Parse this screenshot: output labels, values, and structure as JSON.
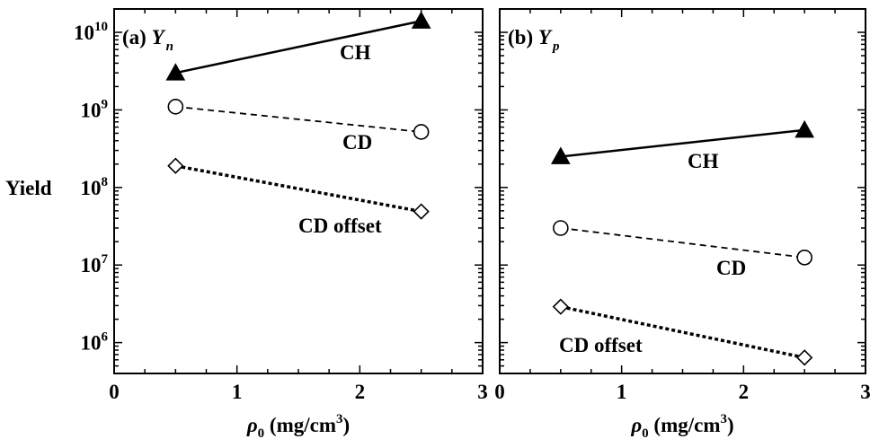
{
  "chart_data": [
    {
      "type": "scatter",
      "panel_label": "(a)",
      "panel_symbol": "Y",
      "panel_subscript": "n",
      "ylabel": "Yield",
      "xlabel_symbol": "ρ",
      "xlabel_subscript": "0",
      "xlabel_unit": "(mg/cm",
      "xlabel_unit_sup": "3",
      "xlabel_unit_end": ")",
      "xlim": [
        0,
        3
      ],
      "ylim": [
        400000,
        20000000000
      ],
      "yscale": "log",
      "x_ticks": [
        "0",
        "1",
        "2",
        "3"
      ],
      "y_ticks": [
        {
          "base": "10",
          "exp": "6"
        },
        {
          "base": "10",
          "exp": "7"
        },
        {
          "base": "10",
          "exp": "8"
        },
        {
          "base": "10",
          "exp": "9"
        },
        {
          "base": "10",
          "exp": "10"
        }
      ],
      "series": [
        {
          "name": "CH",
          "marker": "triangle-filled",
          "line": "solid",
          "x": [
            0.5,
            2.5
          ],
          "y": [
            3000000000,
            14000000000
          ]
        },
        {
          "name": "CD",
          "marker": "circle-open",
          "line": "dashed",
          "x": [
            0.5,
            2.5
          ],
          "y": [
            1100000000,
            520000000
          ]
        },
        {
          "name": "CD offset",
          "marker": "diamond-open",
          "line": "dotted",
          "x": [
            0.5,
            2.5
          ],
          "y": [
            190000000,
            49000000
          ]
        }
      ],
      "grid": false
    },
    {
      "type": "scatter",
      "panel_label": "(b)",
      "panel_symbol": "Y",
      "panel_subscript": "p",
      "xlabel_symbol": "ρ",
      "xlabel_subscript": "0",
      "xlabel_unit": "(mg/cm",
      "xlabel_unit_sup": "3",
      "xlabel_unit_end": ")",
      "xlim": [
        0,
        3
      ],
      "ylim": [
        400000,
        20000000000
      ],
      "yscale": "log",
      "x_ticks": [
        "0",
        "1",
        "2",
        "3"
      ],
      "series": [
        {
          "name": "CH",
          "marker": "triangle-filled",
          "line": "solid",
          "x": [
            0.5,
            2.5
          ],
          "y": [
            250000000,
            550000000
          ]
        },
        {
          "name": "CD",
          "marker": "circle-open",
          "line": "dashed",
          "x": [
            0.5,
            2.5
          ],
          "y": [
            30000000,
            12500000
          ]
        },
        {
          "name": "CD offset",
          "marker": "diamond-open",
          "line": "dotted",
          "x": [
            0.5,
            2.5
          ],
          "y": [
            2900000,
            640000
          ]
        }
      ],
      "grid": false
    }
  ]
}
